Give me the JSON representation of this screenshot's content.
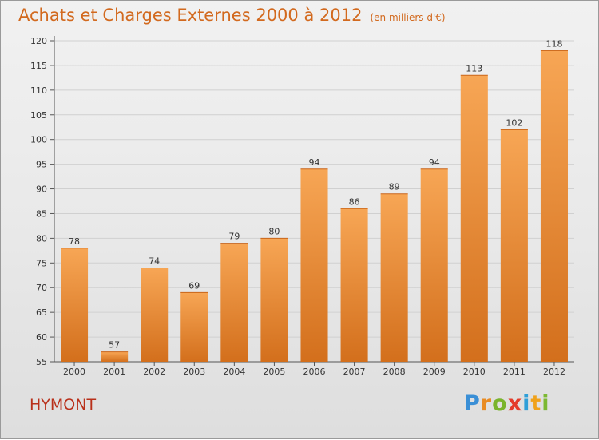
{
  "header": {
    "title": "Achats et Charges Externes 2000 à 2012",
    "unit": "(en milliers d'€)"
  },
  "footer": {
    "commune": "HYMONT",
    "logo_letters": [
      {
        "ch": "P",
        "color": "#3a8fd6"
      },
      {
        "ch": "r",
        "color": "#e98b22"
      },
      {
        "ch": "o",
        "color": "#7ab42c"
      },
      {
        "ch": "x",
        "color": "#e43c2b"
      },
      {
        "ch": "i",
        "color": "#2f9fd8"
      },
      {
        "ch": "t",
        "color": "#f0a21b"
      },
      {
        "ch": "i",
        "color": "#7cb932"
      }
    ]
  },
  "colors": {
    "bar_light": "#f7a655",
    "bar_dark": "#d36f1c",
    "title": "#d2691e",
    "commune": "#b9301a"
  },
  "chart_data": {
    "type": "bar",
    "title": "Achats et Charges Externes 2000 à 2012",
    "subtitle": "(en milliers d'€)",
    "categories": [
      "2000",
      "2001",
      "2002",
      "2003",
      "2004",
      "2005",
      "2006",
      "2007",
      "2008",
      "2009",
      "2010",
      "2011",
      "2012"
    ],
    "values": [
      78,
      57,
      74,
      69,
      79,
      80,
      94,
      86,
      89,
      94,
      113,
      102,
      118
    ],
    "ylim": [
      55,
      120
    ],
    "yticks": [
      55,
      60,
      65,
      70,
      75,
      80,
      85,
      90,
      95,
      100,
      105,
      110,
      115,
      120
    ],
    "grid": true,
    "legend": "none"
  }
}
